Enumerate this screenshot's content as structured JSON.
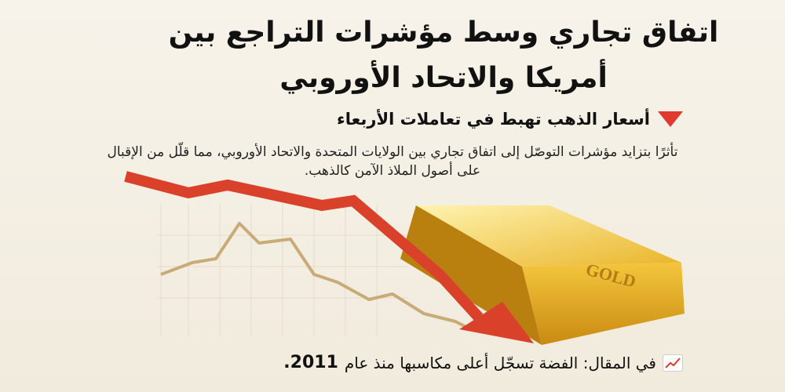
{
  "headline": {
    "line1": "اتفاق تجاري وسط مؤشرات التراجع بين",
    "line2": "أمريكا والاتحاد الأوروبي"
  },
  "subheading": {
    "icon": "red-down-triangle-icon",
    "text": "أسعار الذهب تهبط في تعاملات الأربعاء",
    "color": "#e03a2f"
  },
  "body_text": "تأثرًا بتزايد مؤشرات التوصّل إلى اتفاق تجاري بين الولايات المتحدة والاتحاد الأوروبي، مما قلّل من الإقبال على أصول الملاذ الآمن كالذهب.",
  "illustration": {
    "gold_bar_label": "GOLD",
    "arrow_color": "#d9412b",
    "line_color": "#c9ab78",
    "gold_color": "#e8b830"
  },
  "footer": {
    "icon": "chart-increasing-icon",
    "text": "في المقال: الفضة تسجّل أعلى مكاسبها منذ عام",
    "year": "2011."
  }
}
